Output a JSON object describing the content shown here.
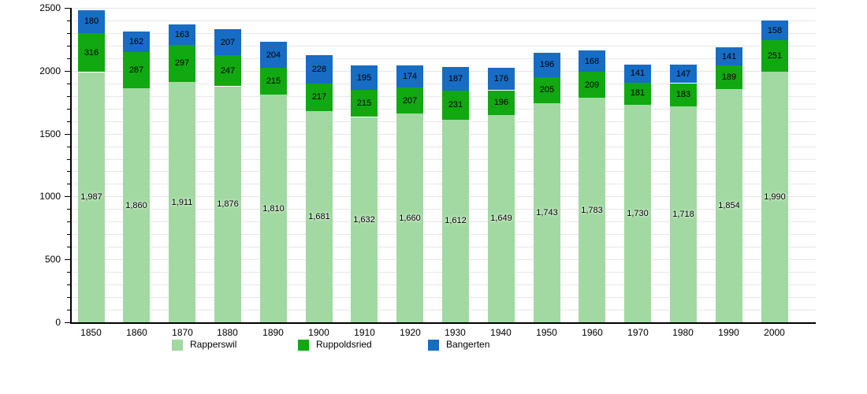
{
  "chart_data": {
    "type": "bar",
    "stacked": true,
    "title": "",
    "xlabel": "",
    "ylabel": "",
    "categories": [
      "1850",
      "1860",
      "1870",
      "1880",
      "1890",
      "1900",
      "1910",
      "1920",
      "1930",
      "1940",
      "1950",
      "1960",
      "1970",
      "1980",
      "1990",
      "2000"
    ],
    "series": [
      {
        "name": "Rapperswil",
        "color": "#a2d9a2",
        "values": [
          1987,
          1860,
          1911,
          1876,
          1810,
          1681,
          1632,
          1660,
          1612,
          1649,
          1743,
          1783,
          1730,
          1718,
          1854,
          1990
        ]
      },
      {
        "name": "Ruppoldsried",
        "color": "#11a811",
        "values": [
          316,
          287,
          297,
          247,
          215,
          217,
          215,
          207,
          231,
          196,
          205,
          209,
          181,
          183,
          189,
          251
        ]
      },
      {
        "name": "Bangerten",
        "color": "#176cc4",
        "values": [
          180,
          162,
          163,
          207,
          204,
          228,
          195,
          174,
          187,
          176,
          196,
          168,
          141,
          147,
          141,
          158
        ]
      }
    ],
    "ylim": [
      0,
      2500
    ],
    "y_major_ticks": [
      "0",
      "500",
      "1000",
      "1500",
      "2000",
      "2500"
    ],
    "y_major_step": 500,
    "y_minor_step": 100,
    "grid": "horizontal",
    "legend_position": "bottom",
    "gridline_color": "#e7e7e7",
    "axis_color": "#000000",
    "label_color": "#000000",
    "background_color": "#ffffff"
  }
}
